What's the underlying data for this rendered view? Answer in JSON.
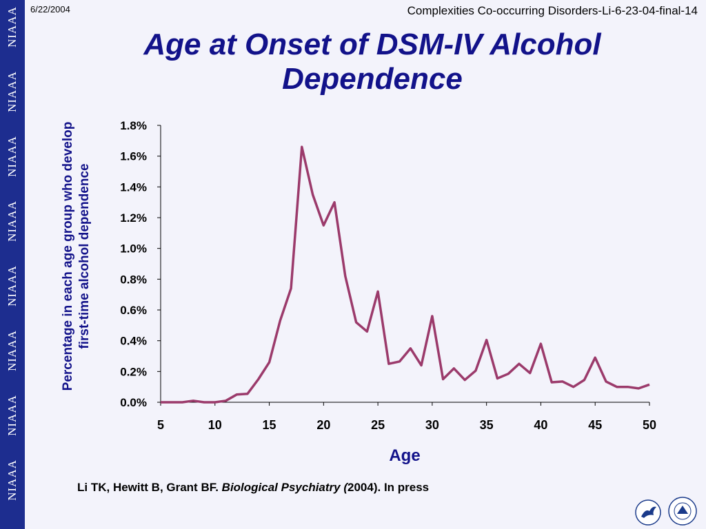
{
  "slide": {
    "date": "6/22/2004",
    "header_right": "Complexities Co-occurring Disorders-Li-6-23-04-final-14",
    "title_line1": "Age at Onset of DSM-IV Alcohol",
    "title_line2": "Dependence",
    "citation_authors": "Li TK, Hewitt B, Grant BF. ",
    "citation_journal": "Biological Psychiatry (",
    "citation_rest": "2004). In press"
  },
  "sidebar": {
    "label": "NIAAA",
    "color": "#1d2d8f"
  },
  "chart_data": {
    "type": "line",
    "ylabel_line1": "Percentage in each age group who develop",
    "ylabel_line2": "first-time alcohol dependence",
    "xlabel": "Age",
    "xlim": [
      5,
      50
    ],
    "ylim": [
      0,
      1.8
    ],
    "x_ticks": [
      5,
      10,
      15,
      20,
      25,
      30,
      35,
      40,
      45,
      50
    ],
    "y_ticks": [
      "0.0%",
      "0.2%",
      "0.4%",
      "0.6%",
      "0.8%",
      "1.0%",
      "1.2%",
      "1.4%",
      "1.6%",
      "1.8%"
    ],
    "line_color": "#9b3a6b",
    "series": [
      {
        "x": [
          5,
          6,
          7,
          8,
          9,
          10,
          11,
          12,
          13,
          14,
          15,
          16,
          17,
          18,
          19,
          20,
          21,
          22,
          23,
          24,
          25,
          26,
          27,
          28,
          29,
          30,
          31,
          32,
          33,
          34,
          35,
          36,
          37,
          38,
          39,
          40,
          41,
          42,
          43,
          44,
          45,
          46,
          47,
          48,
          49,
          50
        ],
        "values": [
          0.0,
          0.0,
          0.0,
          0.01,
          0.0,
          0.0,
          0.01,
          0.05,
          0.055,
          0.15,
          0.26,
          0.53,
          0.74,
          1.66,
          1.35,
          1.15,
          1.3,
          0.82,
          0.52,
          0.46,
          0.72,
          0.25,
          0.265,
          0.35,
          0.24,
          0.56,
          0.15,
          0.22,
          0.145,
          0.205,
          0.405,
          0.155,
          0.185,
          0.25,
          0.19,
          0.38,
          0.13,
          0.135,
          0.1,
          0.145,
          0.29,
          0.135,
          0.1,
          0.1,
          0.09,
          0.115
        ]
      }
    ]
  }
}
